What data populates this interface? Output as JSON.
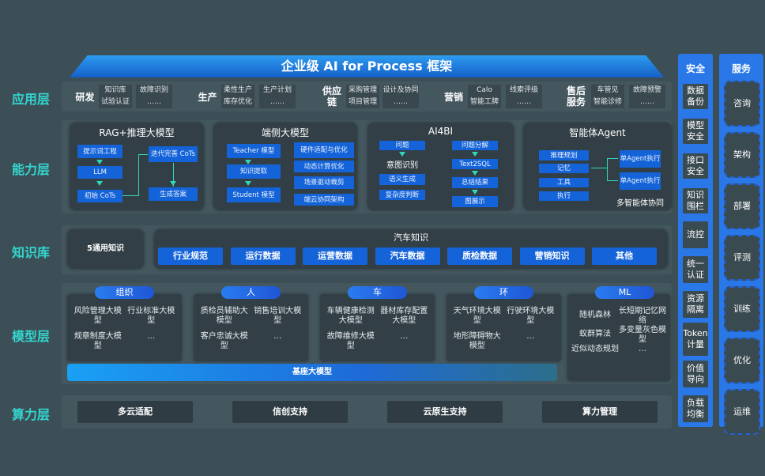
{
  "title": "企业级 AI for Process 框架",
  "layers": [
    "应用层",
    "能力层",
    "知识库",
    "模型层",
    "算力层"
  ],
  "apps": [
    {
      "name": "研发",
      "items": [
        "知识库",
        "故障识别",
        "试验认证",
        "……"
      ]
    },
    {
      "name": "生产",
      "items": [
        "柔性生产",
        "生产计划",
        "库存优化",
        "……"
      ]
    },
    {
      "name": "供应链",
      "items": [
        "采购管理",
        "设计及协同",
        "项目管理",
        "……"
      ]
    },
    {
      "name": "营销",
      "items": [
        "Calo",
        "线索评级",
        "智能工牌",
        "……"
      ]
    },
    {
      "name": "售后服务",
      "items": [
        "车管见",
        "故障预警",
        "智能诊修",
        "……"
      ]
    }
  ],
  "capabilities": [
    {
      "title": "RAG+推理大模型",
      "items": [
        "提示词工程",
        "LLM",
        "初始 CoTs",
        "迭代完善 CoTs",
        "生成答案"
      ]
    },
    {
      "title": "端侧大模型",
      "items": [
        "Teacher 模型",
        "知识提取",
        "Student 模型",
        "硬件适配与优化",
        "动态计算优化",
        "场景驱动裁剪",
        "端云协同架构"
      ]
    },
    {
      "title": "AI4BI",
      "items": [
        "问题",
        "意图识别",
        "语义生成",
        "复杂度判断",
        "问题分解",
        "Text2SQL",
        "总结结果",
        "图展示"
      ]
    },
    {
      "title": "智能体Agent",
      "items": [
        "推理规划",
        "记忆",
        "工具",
        "执行",
        "单Agent执行",
        "单Agent执行",
        "多智能体协同"
      ]
    }
  ],
  "knowledge": {
    "general": "5通用知识",
    "auto_title": "汽车知识",
    "auto_items": [
      "行业规范",
      "运行数据",
      "运营数据",
      "汽车数据",
      "质检数据",
      "营销知识",
      "其他"
    ]
  },
  "models": [
    {
      "name": "组织",
      "items": [
        "风险管理大模型",
        "行业标准大模型",
        "规章制度大模型",
        "…"
      ]
    },
    {
      "name": "人",
      "items": [
        "质检员辅助大模型",
        "销售培训大模型",
        "客户忠诚大模型",
        "…"
      ]
    },
    {
      "name": "车",
      "items": [
        "车辆健康检测大模型",
        "器材库存配置大模型",
        "故障维修大模型",
        "…"
      ]
    },
    {
      "name": "环",
      "items": [
        "天气环境大模型",
        "行驶环境大模型",
        "地形障碍物大模型",
        "…"
      ]
    },
    {
      "name": "ML",
      "items": [
        "随机森林",
        "长短期记忆网络",
        "蚁群算法",
        "多变量灰色模型",
        "近似动态规划",
        "…"
      ]
    }
  ],
  "base_model": "基座大模型",
  "compute": [
    "多云适配",
    "信创支持",
    "云原生支持",
    "算力管理"
  ],
  "security": {
    "title": "安全",
    "items": [
      "数据备份",
      "模型安全",
      "接口安全",
      "知识围栏",
      "流控",
      "统一认证",
      "资源隔离",
      "Token计量",
      "价值导向",
      "负载均衡"
    ]
  },
  "services": {
    "title": "服务",
    "items": [
      "咨询",
      "架构",
      "部署",
      "评测",
      "训练",
      "优化",
      "运维"
    ]
  }
}
